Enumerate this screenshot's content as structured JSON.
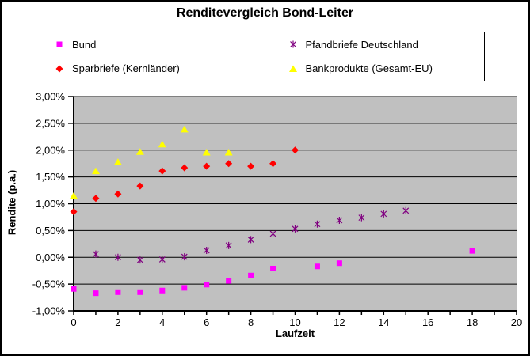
{
  "title": "Renditevergleich Bond-Leiter",
  "chart_data": {
    "type": "scatter",
    "title": "Renditevergleich Bond-Leiter",
    "xlabel": "Laufzeit",
    "ylabel": "Rendite (p.a.)",
    "xlim": [
      0,
      20
    ],
    "ylim": [
      -1.0,
      3.0
    ],
    "grid": "horizontal",
    "legend_position": "top",
    "plot_bg": "#C0C0C0",
    "axis_color": "#000000",
    "x_tick_values": [
      0,
      2,
      4,
      6,
      8,
      10,
      12,
      14,
      16,
      18,
      20
    ],
    "x_tick_labels": [
      "0",
      "2",
      "4",
      "6",
      "8",
      "10",
      "12",
      "14",
      "16",
      "18",
      "20"
    ],
    "x_minor_tick_values": [
      0,
      1,
      2,
      3,
      4,
      5,
      6,
      7,
      8,
      9,
      10,
      11,
      12,
      13,
      14,
      15,
      16,
      17,
      18,
      19,
      20
    ],
    "y_tick_values": [
      3.0,
      2.5,
      2.0,
      1.5,
      1.0,
      0.5,
      0.0,
      -0.5,
      -1.0
    ],
    "y_tick_labels": [
      "3,00%",
      "2,50%",
      "2,00%",
      "1,50%",
      "1,00%",
      "0,50%",
      "0,00%",
      "-0,50%",
      "-1,00%"
    ],
    "y_unit": "percent p.a.",
    "series": [
      {
        "name": "Bund",
        "color": "#FF00FF",
        "marker": "square",
        "points": [
          [
            0,
            -0.59
          ],
          [
            1,
            -0.67
          ],
          [
            2,
            -0.65
          ],
          [
            3,
            -0.65
          ],
          [
            4,
            -0.62
          ],
          [
            5,
            -0.57
          ],
          [
            6,
            -0.51
          ],
          [
            7,
            -0.44
          ],
          [
            8,
            -0.34
          ],
          [
            9,
            -0.21
          ],
          [
            11,
            -0.17
          ],
          [
            12,
            -0.11
          ],
          [
            18,
            0.12
          ]
        ]
      },
      {
        "name": "Pfandbriefe Deutschland",
        "color": "#800080",
        "marker": "star",
        "points": [
          [
            1,
            0.06
          ],
          [
            2,
            0.0
          ],
          [
            3,
            -0.05
          ],
          [
            4,
            -0.04
          ],
          [
            5,
            0.01
          ],
          [
            6,
            0.13
          ],
          [
            7,
            0.22
          ],
          [
            8,
            0.33
          ],
          [
            9,
            0.44
          ],
          [
            10,
            0.53
          ],
          [
            11,
            0.62
          ],
          [
            12,
            0.69
          ],
          [
            13,
            0.74
          ],
          [
            14,
            0.81
          ],
          [
            15,
            0.87
          ]
        ]
      },
      {
        "name": "Sparbriefe (Kernländer)",
        "color": "#FF0000",
        "marker": "diamond",
        "points": [
          [
            0,
            0.85
          ],
          [
            1,
            1.1
          ],
          [
            2,
            1.18
          ],
          [
            3,
            1.33
          ],
          [
            4,
            1.61
          ],
          [
            5,
            1.67
          ],
          [
            6,
            1.7
          ],
          [
            7,
            1.75
          ],
          [
            8,
            1.7
          ],
          [
            9,
            1.75
          ],
          [
            10,
            2.0
          ]
        ]
      },
      {
        "name": "Bankprodukte (Gesamt-EU)",
        "color": "#FFFF00",
        "marker": "triangle",
        "points": [
          [
            0,
            1.15
          ],
          [
            1,
            1.61
          ],
          [
            2,
            1.78
          ],
          [
            3,
            1.97
          ],
          [
            4,
            2.11
          ],
          [
            5,
            2.39
          ],
          [
            6,
            1.96
          ],
          [
            7,
            1.96
          ]
        ]
      }
    ]
  },
  "legend": {
    "grid": [
      [
        0,
        1
      ],
      [
        2,
        3
      ]
    ]
  }
}
